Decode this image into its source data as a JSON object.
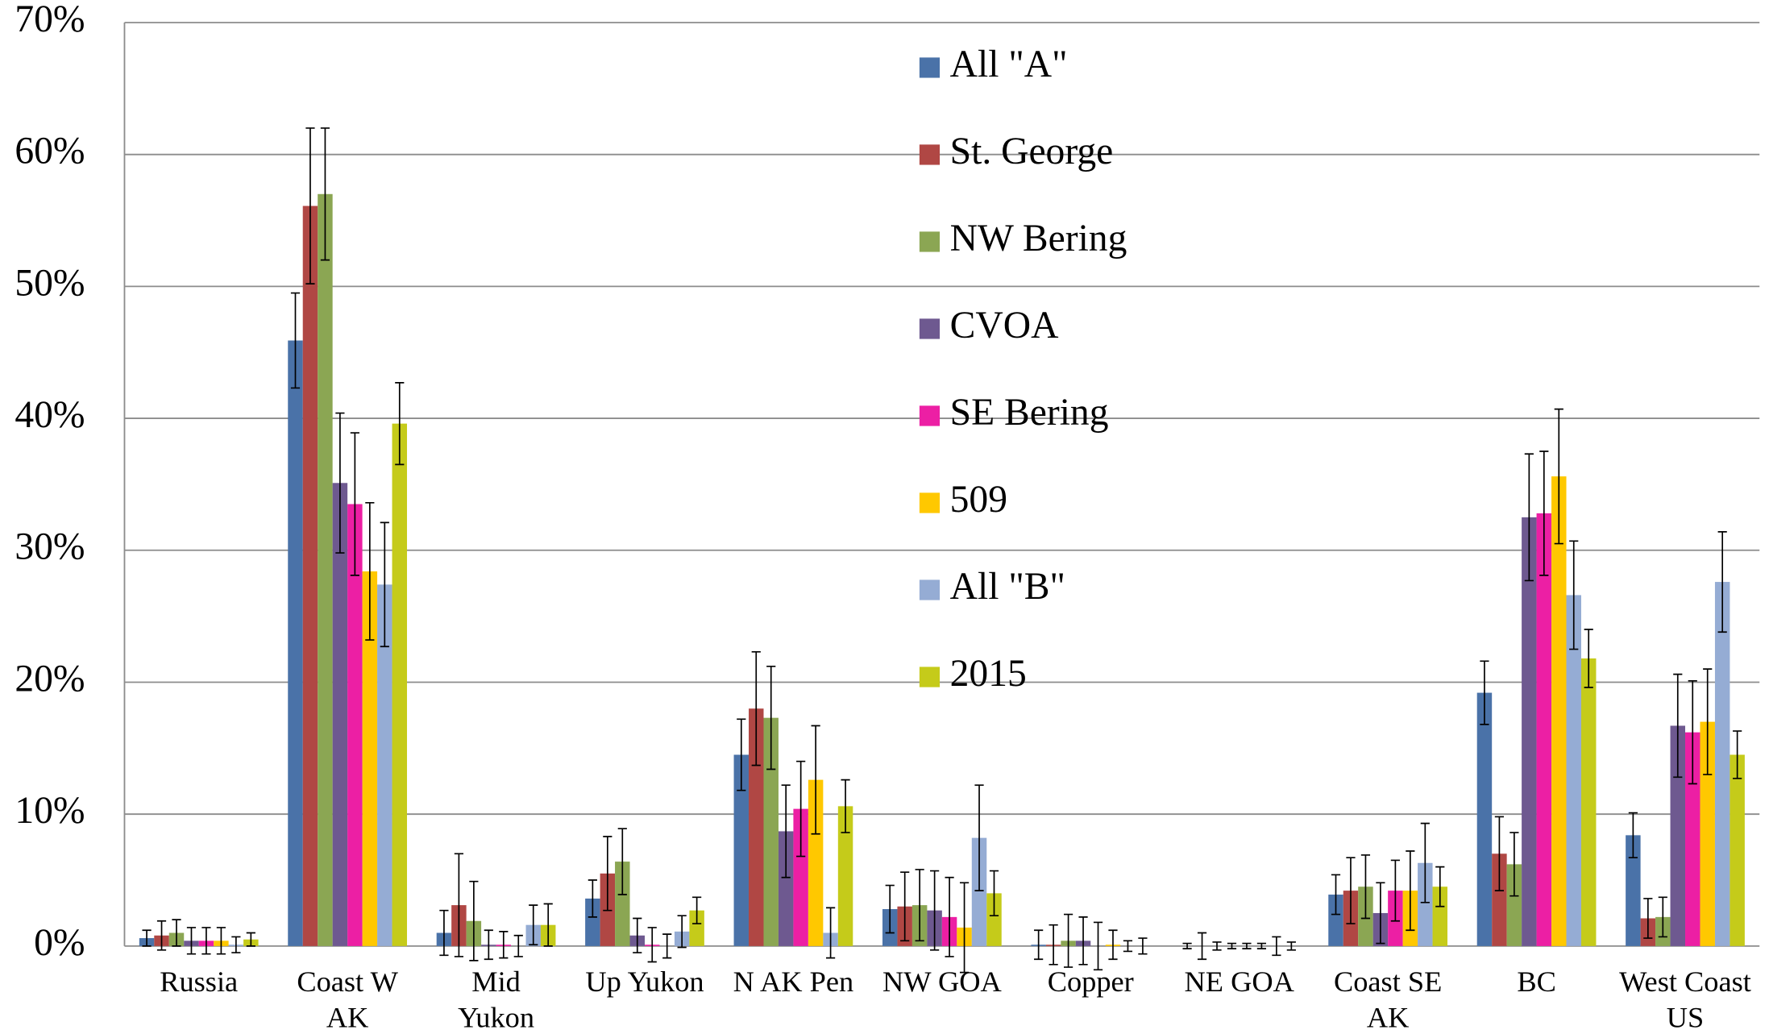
{
  "chart_data": {
    "type": "bar",
    "categories": [
      [
        "Russia"
      ],
      [
        "Coast W",
        "AK"
      ],
      [
        "Mid",
        "Yukon"
      ],
      [
        "Up Yukon"
      ],
      [
        "N AK Pen"
      ],
      [
        "NW GOA"
      ],
      [
        "Copper"
      ],
      [
        "NE GOA"
      ],
      [
        "Coast SE",
        "AK"
      ],
      [
        "BC"
      ],
      [
        "West Coast",
        "US"
      ]
    ],
    "series": [
      {
        "name": "All \"A\"",
        "color": "#4a72a8",
        "values": [
          0.6,
          45.9,
          1.0,
          3.6,
          14.5,
          2.8,
          0.1,
          0.0,
          3.9,
          19.2,
          8.4
        ],
        "errors": [
          0.6,
          3.6,
          1.7,
          1.4,
          2.7,
          1.8,
          1.1,
          0.2,
          1.5,
          2.4,
          1.7
        ]
      },
      {
        "name": "St. George",
        "color": "#b04744",
        "values": [
          0.8,
          56.1,
          3.1,
          5.5,
          18.0,
          3.0,
          0.1,
          0.0,
          4.2,
          7.0,
          2.1
        ],
        "errors": [
          1.1,
          5.9,
          3.9,
          2.8,
          4.3,
          2.6,
          1.5,
          1.0,
          2.5,
          2.8,
          1.5
        ]
      },
      {
        "name": "NW Bering",
        "color": "#8ba653",
        "values": [
          1.0,
          57.0,
          1.9,
          6.4,
          17.3,
          3.1,
          0.4,
          0.0,
          4.5,
          6.2,
          2.2
        ],
        "errors": [
          1.0,
          5.0,
          3.0,
          2.5,
          3.9,
          2.7,
          2.0,
          0.3,
          2.4,
          2.4,
          1.5
        ]
      },
      {
        "name": "CVOA",
        "color": "#6e5990",
        "values": [
          0.4,
          35.1,
          0.1,
          0.8,
          8.7,
          2.7,
          0.4,
          0.0,
          2.5,
          32.5,
          16.7
        ],
        "errors": [
          1.0,
          5.3,
          1.1,
          1.3,
          3.5,
          3.0,
          1.8,
          0.2,
          2.3,
          4.8,
          3.9
        ]
      },
      {
        "name": "SE Bering",
        "color": "#ec1fa4",
        "values": [
          0.4,
          33.5,
          0.1,
          0.1,
          10.4,
          2.2,
          0.0,
          0.0,
          4.2,
          32.8,
          16.2
        ],
        "errors": [
          1.0,
          5.4,
          1.0,
          1.3,
          3.6,
          3.0,
          1.8,
          0.2,
          2.3,
          4.7,
          3.9
        ]
      },
      {
        "name": "509",
        "color": "#ffc800",
        "values": [
          0.4,
          28.4,
          0.0,
          0.0,
          12.6,
          1.4,
          0.1,
          0.0,
          4.2,
          35.6,
          17.0
        ],
        "errors": [
          1.0,
          5.2,
          0.8,
          0.9,
          4.1,
          3.4,
          1.1,
          0.2,
          3.0,
          5.1,
          4.0
        ]
      },
      {
        "name": "All \"B\"",
        "color": "#95acd4",
        "values": [
          0.1,
          27.4,
          1.6,
          1.1,
          1.0,
          8.2,
          0.0,
          0.0,
          6.3,
          26.6,
          27.6
        ],
        "errors": [
          0.6,
          4.7,
          1.5,
          1.2,
          1.9,
          4.0,
          0.4,
          0.7,
          3.0,
          4.1,
          3.8
        ]
      },
      {
        "name": "2015",
        "color": "#c5cb1a",
        "values": [
          0.5,
          39.6,
          1.6,
          2.7,
          10.6,
          4.0,
          0.0,
          0.0,
          4.5,
          21.8,
          14.5
        ],
        "errors": [
          0.5,
          3.1,
          1.6,
          1.0,
          2.0,
          1.7,
          0.6,
          0.3,
          1.5,
          2.2,
          1.8
        ]
      }
    ],
    "ylim": [
      0,
      70
    ],
    "yticks": [
      {
        "value": 0,
        "label": "0%"
      },
      {
        "value": 10,
        "label": "10%"
      },
      {
        "value": 20,
        "label": "20%"
      },
      {
        "value": 30,
        "label": "30%"
      },
      {
        "value": 40,
        "label": "40%"
      },
      {
        "value": 50,
        "label": "50%"
      },
      {
        "value": 60,
        "label": "60%"
      },
      {
        "value": 70,
        "label": "70%"
      }
    ],
    "grid": true,
    "legend": "top"
  }
}
